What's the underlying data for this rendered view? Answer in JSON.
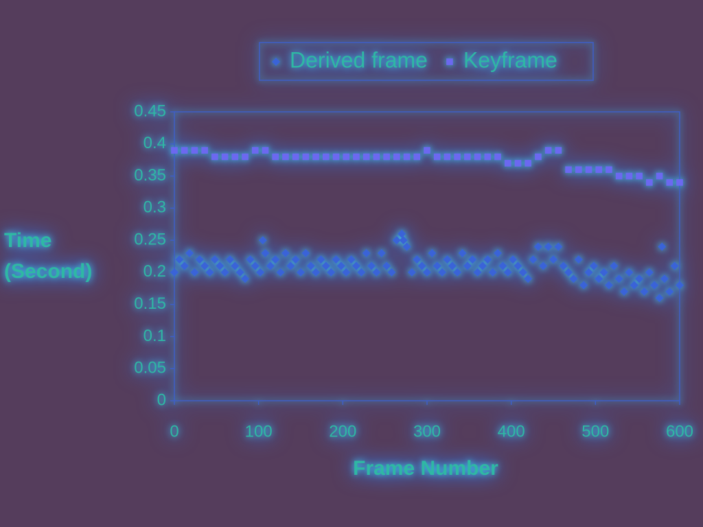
{
  "chart_data": {
    "type": "scatter",
    "xlabel": "Frame Number",
    "ylabel": [
      "Time",
      "(Second)"
    ],
    "xlim": [
      0,
      600
    ],
    "xticks": [
      0,
      100,
      200,
      300,
      400,
      500,
      600
    ],
    "ylim": [
      0,
      0.45
    ],
    "yticks": [
      0,
      0.05,
      0.1,
      0.15,
      0.2,
      0.25,
      0.3,
      0.35,
      0.4,
      0.45
    ],
    "legend": "top",
    "series": [
      {
        "name": "Derived frame",
        "color": "#3a63d8",
        "marker": "diamond",
        "x": [
          0,
          6,
          12,
          18,
          24,
          30,
          36,
          42,
          48,
          54,
          60,
          66,
          72,
          78,
          84,
          90,
          96,
          102,
          108,
          114,
          120,
          126,
          132,
          138,
          144,
          150,
          156,
          162,
          168,
          174,
          180,
          186,
          192,
          198,
          204,
          210,
          216,
          222,
          228,
          234,
          240,
          246,
          252,
          258,
          264,
          270,
          276,
          282,
          288,
          294,
          300,
          306,
          312,
          318,
          324,
          330,
          336,
          342,
          348,
          354,
          360,
          366,
          372,
          378,
          384,
          390,
          396,
          402,
          408,
          414,
          420,
          426,
          432,
          438,
          444,
          450,
          456,
          462,
          468,
          474,
          480,
          486,
          492,
          498,
          504,
          510,
          516,
          522,
          528,
          534,
          540,
          546,
          552,
          558,
          564,
          570,
          576,
          582,
          588,
          594,
          600,
          105,
          272,
          579
        ],
        "values": [
          0.2,
          0.22,
          0.21,
          0.23,
          0.2,
          0.22,
          0.21,
          0.2,
          0.22,
          0.21,
          0.2,
          0.22,
          0.21,
          0.2,
          0.19,
          0.22,
          0.21,
          0.2,
          0.23,
          0.21,
          0.22,
          0.2,
          0.23,
          0.21,
          0.22,
          0.2,
          0.23,
          0.21,
          0.2,
          0.22,
          0.21,
          0.2,
          0.22,
          0.21,
          0.2,
          0.22,
          0.21,
          0.2,
          0.23,
          0.21,
          0.2,
          0.23,
          0.21,
          0.2,
          0.25,
          0.26,
          0.24,
          0.2,
          0.22,
          0.21,
          0.2,
          0.23,
          0.21,
          0.2,
          0.22,
          0.21,
          0.2,
          0.23,
          0.21,
          0.22,
          0.2,
          0.21,
          0.22,
          0.2,
          0.23,
          0.21,
          0.2,
          0.22,
          0.21,
          0.2,
          0.19,
          0.22,
          0.24,
          0.21,
          0.24,
          0.22,
          0.24,
          0.21,
          0.2,
          0.19,
          0.22,
          0.18,
          0.2,
          0.21,
          0.19,
          0.2,
          0.18,
          0.21,
          0.19,
          0.17,
          0.2,
          0.18,
          0.19,
          0.17,
          0.2,
          0.18,
          0.16,
          0.19,
          0.17,
          0.21,
          0.18,
          0.25,
          0.25,
          0.24
        ]
      },
      {
        "name": "Keyframe",
        "color": "#6c68f0",
        "marker": "square",
        "x": [
          0,
          12,
          24,
          36,
          48,
          60,
          72,
          84,
          96,
          108,
          120,
          132,
          144,
          156,
          168,
          180,
          192,
          204,
          216,
          228,
          240,
          252,
          264,
          276,
          288,
          300,
          312,
          324,
          336,
          348,
          360,
          372,
          384,
          396,
          408,
          420,
          432,
          444,
          456,
          468,
          480,
          492,
          504,
          516,
          528,
          540,
          552,
          564,
          576,
          588,
          600
        ],
        "values": [
          0.39,
          0.39,
          0.39,
          0.39,
          0.38,
          0.38,
          0.38,
          0.38,
          0.39,
          0.39,
          0.38,
          0.38,
          0.38,
          0.38,
          0.38,
          0.38,
          0.38,
          0.38,
          0.38,
          0.38,
          0.38,
          0.38,
          0.38,
          0.38,
          0.38,
          0.39,
          0.38,
          0.38,
          0.38,
          0.38,
          0.38,
          0.38,
          0.38,
          0.37,
          0.37,
          0.37,
          0.38,
          0.39,
          0.39,
          0.36,
          0.36,
          0.36,
          0.36,
          0.36,
          0.35,
          0.35,
          0.35,
          0.34,
          0.35,
          0.34,
          0.34
        ]
      }
    ]
  }
}
